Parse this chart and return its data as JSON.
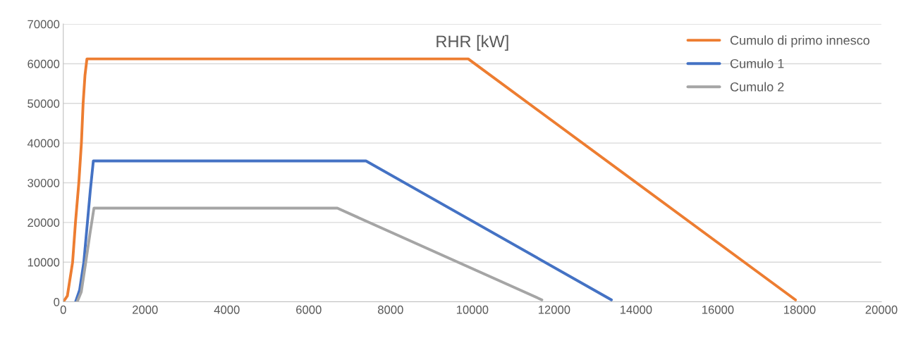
{
  "chart_data": {
    "type": "line",
    "title": "RHR [kW]",
    "xlim": [
      0,
      20000
    ],
    "xticks": [
      0,
      2000,
      4000,
      6000,
      8000,
      10000,
      12000,
      14000,
      16000,
      18000,
      20000
    ],
    "ylim": [
      0,
      70000
    ],
    "yticks": [
      0,
      10000,
      20000,
      30000,
      40000,
      50000,
      60000,
      70000
    ],
    "grid": "y",
    "legend": "top right",
    "marker": "none",
    "line_style": "solid",
    "series": [
      {
        "name": "Cumulo di primo innesco",
        "color": "#ed7d31",
        "x": [
          0,
          100,
          228,
          298,
          380,
          443,
          485,
          530,
          578,
          9900,
          17900
        ],
        "values": [
          0,
          1500,
          10000,
          20000,
          30000,
          40000,
          50000,
          57000,
          61200,
          61200,
          500
        ]
      },
      {
        "name": "Cumulo 1",
        "color": "#4472c4",
        "x": [
          300,
          400,
          502,
          590,
          660,
          735,
          7400,
          13400
        ],
        "values": [
          0,
          3000,
          10000,
          20000,
          28000,
          35500,
          35500,
          500
        ]
      },
      {
        "name": "Cumulo 2",
        "color": "#a5a5a5",
        "x": [
          340,
          440,
          550,
          650,
          750,
          6700,
          11700
        ],
        "values": [
          0,
          2500,
          10000,
          17000,
          23600,
          23600,
          500
        ]
      }
    ]
  }
}
